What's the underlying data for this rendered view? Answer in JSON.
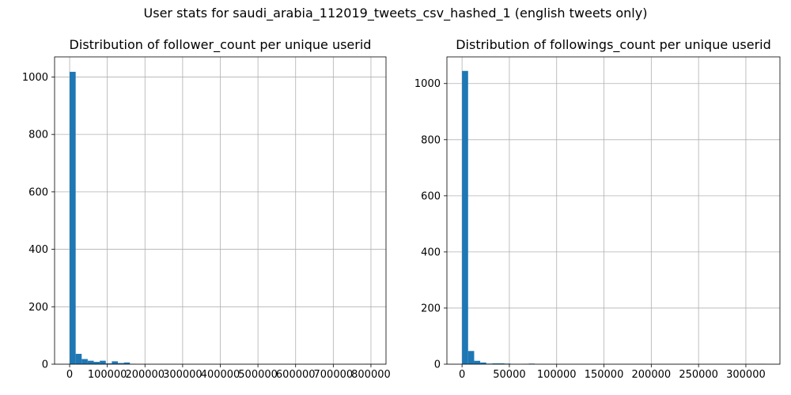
{
  "suptitle": "User stats for saudi_arabia_112019_tweets_csv_hashed_1 (english tweets only)",
  "chart_data": [
    {
      "type": "bar",
      "title": "Distribution of follower_count per unique userid",
      "xlabel": "",
      "ylabel": "",
      "grid": true,
      "bar_color": "#1f77b4",
      "xlim": [
        -40000,
        840000
      ],
      "ylim": [
        0,
        1070
      ],
      "xticks": [
        0,
        100000,
        200000,
        300000,
        400000,
        500000,
        600000,
        700000,
        800000
      ],
      "yticks": [
        0,
        200,
        400,
        600,
        800,
        1000
      ],
      "bin_start": 0,
      "bin_width": 16000,
      "values": [
        1018,
        36,
        18,
        12,
        8,
        12,
        3,
        10,
        4,
        6,
        1,
        0,
        0,
        0,
        0,
        0,
        0,
        0,
        0,
        0,
        0,
        0,
        0,
        0,
        0,
        0,
        0,
        0,
        0,
        0,
        0,
        0,
        0,
        0,
        0,
        0,
        0,
        0,
        0,
        0,
        0,
        0,
        0,
        0,
        0,
        0,
        0,
        0,
        0,
        1
      ]
    },
    {
      "type": "bar",
      "title": "Distribution of followings_count per unique userid",
      "xlabel": "",
      "ylabel": "",
      "grid": true,
      "bar_color": "#1f77b4",
      "xlim": [
        -16000,
        336000
      ],
      "ylim": [
        0,
        1095
      ],
      "xticks": [
        0,
        50000,
        100000,
        150000,
        200000,
        250000,
        300000
      ],
      "yticks": [
        0,
        200,
        400,
        600,
        800,
        1000
      ],
      "bin_start": 0,
      "bin_width": 6400,
      "values": [
        1045,
        47,
        12,
        6,
        2,
        3,
        3,
        2,
        0,
        0,
        1,
        2,
        0,
        0,
        0,
        0,
        0,
        0,
        0,
        0,
        0,
        0,
        0,
        0,
        0,
        0,
        0,
        0,
        0,
        0,
        0,
        0,
        0,
        0,
        0,
        0,
        0,
        0,
        0,
        0,
        0,
        0,
        0,
        0,
        0,
        0,
        0,
        0,
        0,
        1
      ]
    }
  ]
}
